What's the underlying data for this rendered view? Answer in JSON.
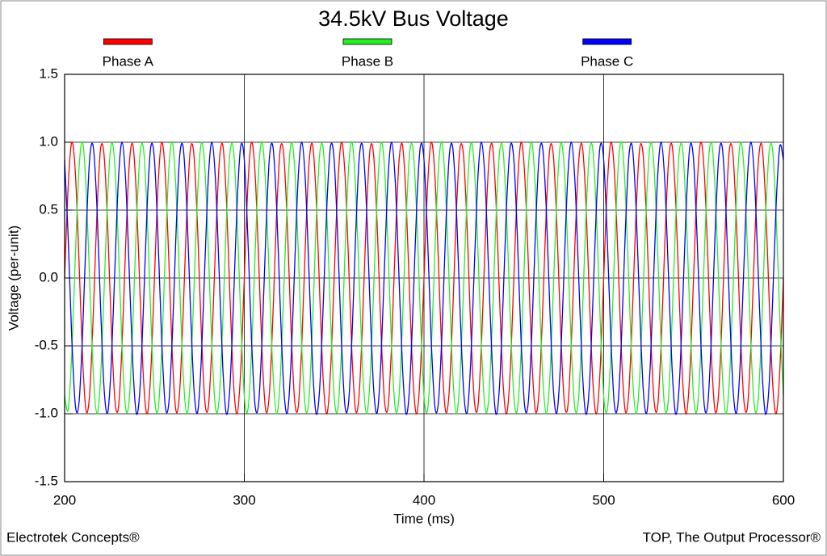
{
  "chart_data": {
    "type": "line",
    "title": "34.5kV Bus Voltage",
    "x_label": "Time (ms)",
    "y_label": "Voltage (per-unit)",
    "footer_left": "Electrotek Concepts®",
    "footer_right": "TOP, The Output Processor®",
    "xlim": [
      200,
      600
    ],
    "xticks": [
      200,
      300,
      400,
      500,
      600
    ],
    "ylim": [
      -1.5,
      1.5
    ],
    "yticks": [
      -1.5,
      {
        "value": -1,
        "label": "-1.0"
      },
      -0.5,
      {
        "value": 0,
        "label": "0.0"
      },
      0.5,
      {
        "value": 1,
        "label": "1.0"
      },
      1.5
    ],
    "grid": true,
    "legend": "top",
    "x": [
      200,
      202,
      204,
      206,
      208,
      210,
      212,
      214,
      216,
      218,
      220,
      222,
      224,
      226,
      228,
      230,
      232,
      234,
      236,
      238,
      240,
      242,
      244,
      246,
      248,
      250,
      252,
      254,
      256,
      258,
      260,
      262,
      264,
      266,
      268,
      270,
      272,
      274,
      276,
      278,
      280,
      282,
      284,
      286,
      288,
      290,
      292,
      294,
      296,
      298,
      300,
      302,
      304,
      306,
      308,
      310,
      312,
      314,
      316,
      318,
      320,
      322,
      324,
      326,
      328,
      330,
      332,
      334,
      336,
      338,
      340,
      342,
      344,
      346,
      348,
      350,
      352,
      354,
      356,
      358,
      360,
      362,
      364,
      366,
      368,
      370,
      372,
      374,
      376,
      378,
      380,
      382,
      384,
      386,
      388,
      390,
      392,
      394,
      396,
      398,
      400,
      402,
      404,
      406,
      408,
      410,
      412,
      414,
      416,
      418,
      420,
      422,
      424,
      426,
      428,
      430,
      432,
      434,
      436,
      438,
      440,
      442,
      444,
      446,
      448,
      450,
      452,
      454,
      456,
      458,
      460,
      462,
      464,
      466,
      468,
      470,
      472,
      474,
      476,
      478,
      480,
      482,
      484,
      486,
      488,
      490,
      492,
      494,
      496,
      498,
      500,
      502,
      504,
      506,
      508,
      510,
      512,
      514,
      516,
      518,
      520,
      522,
      524,
      526,
      528,
      530,
      532,
      534,
      536,
      538,
      540,
      542,
      544,
      546,
      548,
      550,
      552,
      554,
      556,
      558,
      560,
      562,
      564,
      566,
      568,
      570,
      572,
      574,
      576,
      578,
      580,
      582,
      584,
      586,
      588,
      590,
      592,
      594,
      596,
      598,
      600
    ],
    "series": [
      {
        "name": "Phase A",
        "color": "#ff0000",
        "values": [
          0,
          0.68,
          1,
          0.77,
          0.13,
          -0.59,
          -0.98,
          -0.84,
          -0.25,
          0.48,
          0.95,
          0.9,
          0.37,
          -0.37,
          -0.9,
          -0.95,
          -0.48,
          0.25,
          0.84,
          0.98,
          0.59,
          -0.13,
          -0.77,
          -1,
          -0.68,
          0,
          0.68,
          1,
          0.77,
          0.13,
          -0.59,
          -0.98,
          -0.84,
          -0.25,
          0.48,
          0.95,
          0.9,
          0.37,
          -0.37,
          -0.9,
          -0.95,
          -0.48,
          0.25,
          0.84,
          0.98,
          0.59,
          -0.13,
          -0.77,
          -1,
          -0.68,
          0,
          0.68,
          1,
          0.77,
          0.13,
          -0.59,
          -0.98,
          -0.84,
          -0.25,
          0.48,
          0.95,
          0.9,
          0.37,
          -0.37,
          -0.9,
          -0.95,
          -0.48,
          0.25,
          0.84,
          0.98,
          0.59,
          -0.13,
          -0.77,
          -1,
          -0.68,
          0,
          0.68,
          1,
          0.77,
          0.13,
          -0.59,
          -0.98,
          -0.84,
          -0.25,
          0.48,
          0.95,
          0.9,
          0.37,
          -0.37,
          -0.9,
          -0.95,
          -0.48,
          0.25,
          0.84,
          0.98,
          0.59,
          -0.13,
          -0.77,
          -1,
          -0.68,
          0,
          0.68,
          1,
          0.77,
          0.13,
          -0.59,
          -0.98,
          -0.84,
          -0.25,
          0.48,
          0.95,
          0.9,
          0.37,
          -0.37,
          -0.9,
          -0.95,
          -0.48,
          0.25,
          0.84,
          0.98,
          0.59,
          -0.13,
          -0.77,
          -1,
          -0.68,
          0,
          0.68,
          1,
          0.77,
          0.13,
          -0.59,
          -0.98,
          -0.84,
          -0.25,
          0.48,
          0.95,
          0.9,
          0.37,
          -0.37,
          -0.9,
          -0.95,
          -0.48,
          0.25,
          0.84,
          0.98,
          0.59,
          -0.13,
          -0.77,
          -1,
          -0.68,
          0,
          0.68,
          1,
          0.77,
          0.13,
          -0.59,
          -0.98,
          -0.84,
          -0.25,
          0.48,
          0.95,
          0.9,
          0.37,
          -0.37,
          -0.9,
          -0.95,
          -0.48,
          0.25,
          0.84,
          0.98,
          0.59,
          -0.13,
          -0.77,
          -1,
          -0.68,
          0,
          0.68,
          1,
          0.77,
          0.13,
          -0.59,
          -0.98,
          -0.84,
          -0.25,
          0.48,
          0.95,
          0.9,
          0.37,
          -0.37,
          -0.9,
          -0.95,
          -0.48,
          0.25,
          0.84,
          0.98,
          0.59,
          -0.13,
          -0.77,
          -1,
          -0.68,
          0
        ]
      },
      {
        "name": "Phase B",
        "color": "#22ee22",
        "values": [
          -0.87,
          -0.97,
          -0.55,
          0.17,
          0.8,
          1,
          0.65,
          -0.04,
          -0.71,
          -1,
          -0.74,
          -0.08,
          0.62,
          0.99,
          0.82,
          0.21,
          -0.52,
          -0.96,
          -0.89,
          -0.33,
          0.41,
          0.92,
          0.94,
          0.45,
          -0.29,
          -0.87,
          -0.97,
          -0.55,
          0.17,
          0.8,
          1,
          0.65,
          -0.04,
          -0.71,
          -1,
          -0.74,
          -0.08,
          0.62,
          0.99,
          0.82,
          0.21,
          -0.52,
          -0.96,
          -0.89,
          -0.33,
          0.41,
          0.92,
          0.94,
          0.45,
          -0.29,
          -0.87,
          -0.97,
          -0.55,
          0.17,
          0.8,
          1,
          0.65,
          -0.04,
          -0.71,
          -1,
          -0.74,
          -0.08,
          0.62,
          0.99,
          0.82,
          0.21,
          -0.52,
          -0.96,
          -0.89,
          -0.33,
          0.41,
          0.92,
          0.94,
          0.45,
          -0.29,
          -0.87,
          -0.97,
          -0.55,
          0.17,
          0.8,
          1,
          0.65,
          -0.04,
          -0.71,
          -1,
          -0.74,
          -0.08,
          0.62,
          0.99,
          0.82,
          0.21,
          -0.52,
          -0.96,
          -0.89,
          -0.33,
          0.41,
          0.92,
          0.94,
          0.45,
          -0.29,
          -0.87,
          -0.97,
          -0.55,
          0.17,
          0.8,
          1,
          0.65,
          -0.04,
          -0.71,
          -1,
          -0.74,
          -0.08,
          0.62,
          0.99,
          0.82,
          0.21,
          -0.52,
          -0.96,
          -0.89,
          -0.33,
          0.41,
          0.92,
          0.94,
          0.45,
          -0.29,
          -0.87,
          -0.97,
          -0.55,
          0.17,
          0.8,
          1,
          0.65,
          -0.04,
          -0.71,
          -1,
          -0.74,
          -0.08,
          0.62,
          0.99,
          0.82,
          0.21,
          -0.52,
          -0.96,
          -0.89,
          -0.33,
          0.41,
          0.92,
          0.94,
          0.45,
          -0.29,
          -0.87,
          -0.97,
          -0.55,
          0.17,
          0.8,
          1,
          0.65,
          -0.04,
          -0.71,
          -1,
          -0.74,
          -0.08,
          0.62,
          0.99,
          0.82,
          0.21,
          -0.52,
          -0.96,
          -0.89,
          -0.33,
          0.41,
          0.92,
          0.94,
          0.45,
          -0.29,
          -0.87,
          -0.97,
          -0.55,
          0.17,
          0.8,
          1,
          0.65,
          -0.04,
          -0.71,
          -1,
          -0.74,
          -0.08,
          0.62,
          0.99,
          0.82,
          0.21,
          -0.52,
          -0.96,
          -0.89,
          -0.33,
          0.41,
          0.92,
          0.94,
          0.45,
          -0.29,
          -0.87
        ]
      },
      {
        "name": "Phase C",
        "color": "#0000ff",
        "values": [
          0.87,
          0.29,
          -0.45,
          -0.94,
          -0.92,
          -0.41,
          0.33,
          0.89,
          0.96,
          0.52,
          -0.21,
          -0.82,
          -0.99,
          -0.62,
          0.08,
          0.74,
          1,
          0.71,
          0.04,
          -0.65,
          -1,
          -0.8,
          -0.17,
          0.55,
          0.97,
          0.87,
          0.29,
          -0.45,
          -0.94,
          -0.92,
          -0.41,
          0.33,
          0.89,
          0.96,
          0.52,
          -0.21,
          -0.82,
          -0.99,
          -0.62,
          0.08,
          0.74,
          1,
          0.71,
          0.04,
          -0.65,
          -1,
          -0.8,
          -0.17,
          0.55,
          0.97,
          0.87,
          0.29,
          -0.45,
          -0.94,
          -0.92,
          -0.41,
          0.33,
          0.89,
          0.96,
          0.52,
          -0.21,
          -0.82,
          -0.99,
          -0.62,
          0.08,
          0.74,
          1,
          0.71,
          0.04,
          -0.65,
          -1,
          -0.8,
          -0.17,
          0.55,
          0.97,
          0.87,
          0.29,
          -0.45,
          -0.94,
          -0.92,
          -0.41,
          0.33,
          0.89,
          0.96,
          0.52,
          -0.21,
          -0.82,
          -0.99,
          -0.62,
          0.08,
          0.74,
          1,
          0.71,
          0.04,
          -0.65,
          -1,
          -0.8,
          -0.17,
          0.55,
          0.97,
          0.87,
          0.29,
          -0.45,
          -0.94,
          -0.92,
          -0.41,
          0.33,
          0.89,
          0.96,
          0.52,
          -0.21,
          -0.82,
          -0.99,
          -0.62,
          0.08,
          0.74,
          1,
          0.71,
          0.04,
          -0.65,
          -1,
          -0.8,
          -0.17,
          0.55,
          0.97,
          0.87,
          0.29,
          -0.45,
          -0.94,
          -0.92,
          -0.41,
          0.33,
          0.89,
          0.96,
          0.52,
          -0.21,
          -0.82,
          -0.99,
          -0.62,
          0.08,
          0.74,
          1,
          0.71,
          0.04,
          -0.65,
          -1,
          -0.8,
          -0.17,
          0.55,
          0.97,
          0.87,
          0.29,
          -0.45,
          -0.94,
          -0.92,
          -0.41,
          0.33,
          0.89,
          0.96,
          0.52,
          -0.21,
          -0.82,
          -0.99,
          -0.62,
          0.08,
          0.74,
          1,
          0.71,
          0.04,
          -0.65,
          -1,
          -0.8,
          -0.17,
          0.55,
          0.97,
          0.87,
          0.29,
          -0.45,
          -0.94,
          -0.92,
          -0.41,
          0.33,
          0.89,
          0.96,
          0.52,
          -0.21,
          -0.82,
          -0.99,
          -0.62,
          0.08,
          0.74,
          1,
          0.71,
          0.04,
          -0.65,
          -1,
          -0.8,
          -0.17,
          0.55,
          0.97,
          0.87
        ]
      }
    ]
  }
}
